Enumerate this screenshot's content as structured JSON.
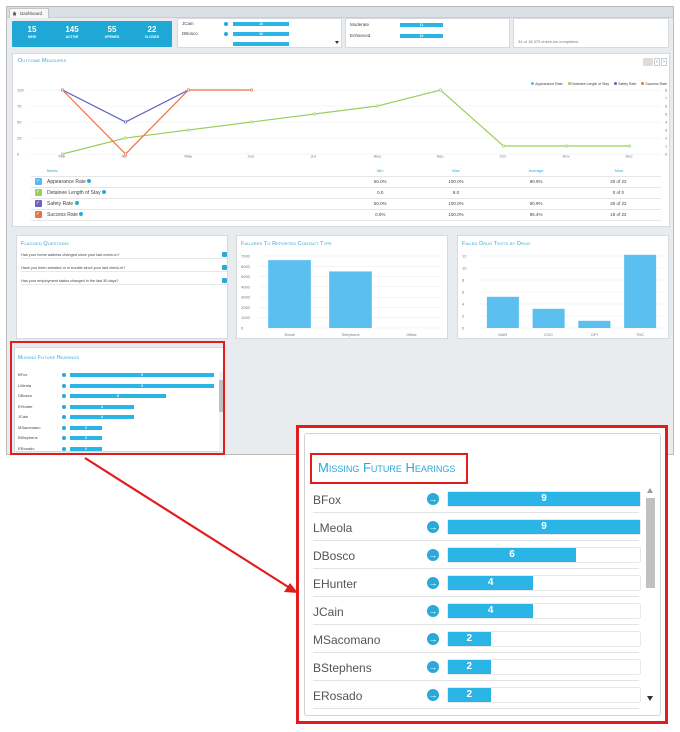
{
  "tab": {
    "label": "Dashboard"
  },
  "stats": [
    {
      "value": "15",
      "label": "NEW"
    },
    {
      "value": "145",
      "label": "ACTIVE"
    },
    {
      "value": "55",
      "label": "OPENED"
    },
    {
      "value": "22",
      "label": "CLOSED"
    }
  ],
  "officer_bars": [
    {
      "name": "JCain",
      "value": "10",
      "frac": 1.0
    },
    {
      "name": "DBosco",
      "value": "10",
      "frac": 1.0
    },
    {
      "name": "",
      "value": "",
      "frac": 1.0
    }
  ],
  "risk_bars": [
    {
      "name": "Moderate",
      "frac": 0.5,
      "value": "11"
    },
    {
      "name": "Enhanced",
      "frac": 0.5,
      "value": "10"
    }
  ],
  "checkins": {
    "text": "34 of 18,375 check-ins completed."
  },
  "outcome": {
    "title": "Outcome Measures",
    "legend": [
      "Appearance Rate",
      "Detainee Length of Stay",
      "Safety Rate",
      "Success Rate"
    ],
    "colors": [
      "#5bb8ec",
      "#9bcf5d",
      "#6c63b8",
      "#ee7243"
    ],
    "months": [
      "Mar",
      "Apr",
      "May",
      "Jun",
      "Jul",
      "Aug",
      "Sep",
      "Oct",
      "Nov",
      "Dec"
    ],
    "ticks_left": [
      "100",
      "75",
      "50",
      "25",
      "0"
    ],
    "ticks_right": [
      "8",
      "7",
      "6",
      "5",
      "4",
      "3",
      "2",
      "1",
      "0"
    ],
    "headers": [
      "Metric",
      "Min",
      "Max",
      "Average",
      "Total"
    ],
    "rows": [
      {
        "metric": "Appearance Rate",
        "min": "50.0%",
        "max": "100.0%",
        "avg": "90.9%",
        "total": "20 of 22"
      },
      {
        "metric": "Detainee Length of Stay",
        "min": "0.0",
        "max": "8.0",
        "avg": "",
        "total": "0 of 0"
      },
      {
        "metric": "Safety Rate",
        "min": "50.0%",
        "max": "100.0%",
        "avg": "90.9%",
        "total": "20 of 22"
      },
      {
        "metric": "Success Rate",
        "min": "0.0%",
        "max": "100.0%",
        "avg": "86.4%",
        "total": "19 of 22"
      }
    ]
  },
  "flagged": {
    "title": "Flagged Questions",
    "questions": [
      "Has your home address changed since your last check-in?",
      "Have you been arrested or in trouble since your last check-in?",
      "Has your employment status changed in the last 30 days?"
    ]
  },
  "failures_contact": {
    "title": "Failures To Reported Contact Type",
    "y_ticks": [
      "7000",
      "6000",
      "5000",
      "4000",
      "3000",
      "2000",
      "1000",
      "0"
    ],
    "categories": [
      "Email",
      "Telephone",
      "Office"
    ],
    "values": [
      6600,
      5500,
      0
    ],
    "ymax": 7000
  },
  "failures_drug": {
    "title": "Failed Drug Tests by Drug",
    "y_ticks": [
      "12",
      "10",
      "8",
      "6",
      "4",
      "2",
      "0"
    ],
    "categories": [
      "MAR",
      "COC",
      "OPI",
      "THC"
    ],
    "values": [
      5.2,
      3.2,
      1.2,
      12.2
    ],
    "ymax": 12
  },
  "missing_small": {
    "title": "Missing Future Hearings",
    "rows": [
      {
        "name": "BFox",
        "value": "9"
      },
      {
        "name": "LMeola",
        "value": "9"
      },
      {
        "name": "DBosco",
        "value": "6"
      },
      {
        "name": "EHunter",
        "value": "4"
      },
      {
        "name": "JCain",
        "value": "4"
      },
      {
        "name": "MSacomano",
        "value": "2"
      },
      {
        "name": "BStephens",
        "value": "2"
      },
      {
        "name": "ERosado",
        "value": "2"
      }
    ]
  },
  "missing_zoom": {
    "title": "Missing Future Hearings",
    "rows": [
      {
        "name": "BFox",
        "value": "9",
        "frac": 1.0
      },
      {
        "name": "LMeola",
        "value": "9",
        "frac": 1.0
      },
      {
        "name": "DBosco",
        "value": "6",
        "frac": 0.667
      },
      {
        "name": "EHunter",
        "value": "4",
        "frac": 0.444
      },
      {
        "name": "JCain",
        "value": "4",
        "frac": 0.444
      },
      {
        "name": "MSacomano",
        "value": "2",
        "frac": 0.222
      },
      {
        "name": "BStephens",
        "value": "2",
        "frac": 0.222
      },
      {
        "name": "ERosado",
        "value": "2",
        "frac": 0.222
      }
    ]
  },
  "chart_data": [
    {
      "type": "line",
      "x": [
        "Mar",
        "Apr",
        "May",
        "Jun",
        "Jul",
        "Aug",
        "Sep",
        "Oct",
        "Nov",
        "Dec"
      ],
      "series": [
        {
          "name": "Appearance Rate",
          "values": [
            100,
            50,
            100,
            null,
            null,
            null,
            null,
            null,
            null,
            null
          ]
        },
        {
          "name": "Detainee Length of Stay",
          "values": [
            0,
            2,
            3,
            4,
            5,
            6,
            8,
            1,
            1,
            1
          ]
        },
        {
          "name": "Safety Rate",
          "values": [
            100,
            50,
            100,
            null,
            null,
            null,
            null,
            null,
            null,
            null
          ]
        },
        {
          "name": "Success Rate",
          "values": [
            100,
            0,
            100,
            100,
            null,
            null,
            null,
            null,
            null,
            null
          ]
        }
      ],
      "ylim": [
        0,
        100
      ],
      "y2lim": [
        0,
        8
      ]
    },
    {
      "type": "bar",
      "categories": [
        "Email",
        "Telephone",
        "Office"
      ],
      "values": [
        6600,
        5500,
        0
      ],
      "ylim": [
        0,
        7000
      ]
    },
    {
      "type": "bar",
      "categories": [
        "MAR",
        "COC",
        "OPI",
        "THC"
      ],
      "values": [
        5.2,
        3.2,
        1.2,
        12.2
      ],
      "ylim": [
        0,
        12
      ]
    },
    {
      "type": "bar",
      "categories": [
        "BFox",
        "LMeola",
        "DBosco",
        "EHunter",
        "JCain",
        "MSacomano",
        "BStephens",
        "ERosado"
      ],
      "values": [
        9,
        9,
        6,
        4,
        4,
        2,
        2,
        2
      ]
    }
  ]
}
